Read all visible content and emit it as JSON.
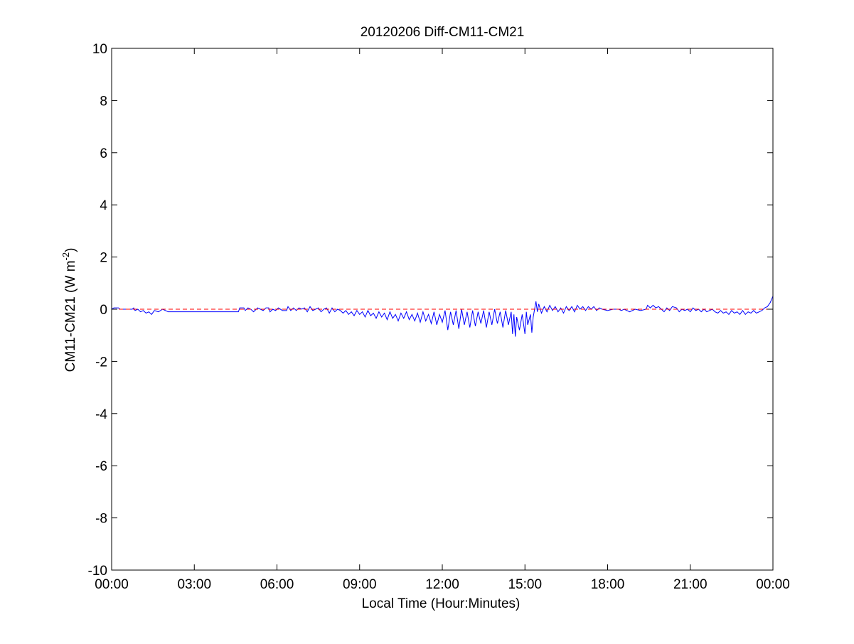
{
  "chart_data": {
    "type": "line",
    "title": "20120206 Diff-CM11-CM21",
    "xlabel": "Local Time (Hour:Minutes)",
    "ylabel": {
      "main": "CM11-CM21 (W m",
      "superscript": "-2",
      "suffix": ")"
    },
    "xlim_hours": [
      0,
      24
    ],
    "ylim": [
      -10,
      10
    ],
    "x_ticks": [
      {
        "hour": 0,
        "label": "00:00"
      },
      {
        "hour": 3,
        "label": "03:00"
      },
      {
        "hour": 6,
        "label": "06:00"
      },
      {
        "hour": 9,
        "label": "09:00"
      },
      {
        "hour": 12,
        "label": "12:00"
      },
      {
        "hour": 15,
        "label": "15:00"
      },
      {
        "hour": 18,
        "label": "18:00"
      },
      {
        "hour": 21,
        "label": "21:00"
      },
      {
        "hour": 24,
        "label": "00:00"
      }
    ],
    "y_ticks": [
      {
        "value": 10,
        "label": "10"
      },
      {
        "value": 8,
        "label": "8"
      },
      {
        "value": 6,
        "label": "6"
      },
      {
        "value": 4,
        "label": "4"
      },
      {
        "value": 2,
        "label": "2"
      },
      {
        "value": 0,
        "label": "0"
      },
      {
        "value": -2,
        "label": "-2"
      },
      {
        "value": -4,
        "label": "-4"
      },
      {
        "value": -6,
        "label": "-6"
      },
      {
        "value": -8,
        "label": "-8"
      },
      {
        "value": -10,
        "label": "-10"
      }
    ],
    "grid": false,
    "series": [
      {
        "style": "solid",
        "color": "#0000ff",
        "points": [
          [
            0.0,
            0.0
          ],
          [
            0.08,
            0.05
          ],
          [
            0.25,
            0.05
          ],
          [
            0.3,
            0.0
          ],
          [
            0.75,
            0.0
          ],
          [
            0.8,
            0.05
          ],
          [
            0.85,
            -0.05
          ],
          [
            0.95,
            0.0
          ],
          [
            1.05,
            -0.1
          ],
          [
            1.15,
            -0.05
          ],
          [
            1.25,
            -0.15
          ],
          [
            1.35,
            -0.1
          ],
          [
            1.45,
            -0.2
          ],
          [
            1.55,
            -0.05
          ],
          [
            1.7,
            -0.1
          ],
          [
            1.85,
            0.0
          ],
          [
            2.05,
            -0.1
          ],
          [
            2.3,
            -0.1
          ],
          [
            3.0,
            -0.1
          ],
          [
            4.0,
            -0.1
          ],
          [
            4.6,
            -0.1
          ],
          [
            4.65,
            0.05
          ],
          [
            4.8,
            0.05
          ],
          [
            4.85,
            -0.05
          ],
          [
            4.95,
            0.05
          ],
          [
            5.05,
            0.0
          ],
          [
            5.15,
            -0.1
          ],
          [
            5.3,
            0.05
          ],
          [
            5.4,
            0.0
          ],
          [
            5.5,
            -0.05
          ],
          [
            5.6,
            0.05
          ],
          [
            5.7,
            0.05
          ],
          [
            5.75,
            -0.1
          ],
          [
            5.85,
            0.0
          ],
          [
            5.95,
            -0.05
          ],
          [
            6.05,
            0.05
          ],
          [
            6.2,
            -0.05
          ],
          [
            6.35,
            -0.05
          ],
          [
            6.4,
            0.1
          ],
          [
            6.5,
            -0.05
          ],
          [
            6.6,
            0.05
          ],
          [
            6.7,
            -0.05
          ],
          [
            6.8,
            0.05
          ],
          [
            6.9,
            0.0
          ],
          [
            7.0,
            0.05
          ],
          [
            7.1,
            -0.1
          ],
          [
            7.2,
            0.1
          ],
          [
            7.3,
            -0.05
          ],
          [
            7.4,
            0.0
          ],
          [
            7.5,
            0.05
          ],
          [
            7.6,
            -0.1
          ],
          [
            7.7,
            0.0
          ],
          [
            7.8,
            0.05
          ],
          [
            7.9,
            -0.15
          ],
          [
            8.0,
            0.05
          ],
          [
            8.1,
            -0.1
          ],
          [
            8.2,
            0.0
          ],
          [
            8.3,
            -0.05
          ],
          [
            8.4,
            -0.15
          ],
          [
            8.5,
            -0.05
          ],
          [
            8.6,
            -0.2
          ],
          [
            8.7,
            -0.1
          ],
          [
            8.8,
            -0.25
          ],
          [
            8.9,
            -0.05
          ],
          [
            9.0,
            -0.2
          ],
          [
            9.1,
            -0.1
          ],
          [
            9.2,
            -0.3
          ],
          [
            9.3,
            -0.05
          ],
          [
            9.4,
            -0.25
          ],
          [
            9.5,
            -0.15
          ],
          [
            9.6,
            -0.35
          ],
          [
            9.7,
            -0.1
          ],
          [
            9.8,
            -0.3
          ],
          [
            9.9,
            -0.15
          ],
          [
            10.0,
            -0.4
          ],
          [
            10.1,
            -0.1
          ],
          [
            10.2,
            -0.35
          ],
          [
            10.3,
            -0.2
          ],
          [
            10.4,
            -0.45
          ],
          [
            10.5,
            -0.15
          ],
          [
            10.6,
            -0.35
          ],
          [
            10.7,
            -0.1
          ],
          [
            10.8,
            -0.4
          ],
          [
            10.9,
            -0.2
          ],
          [
            11.0,
            -0.45
          ],
          [
            11.1,
            -0.15
          ],
          [
            11.2,
            -0.5
          ],
          [
            11.3,
            -0.1
          ],
          [
            11.4,
            -0.45
          ],
          [
            11.5,
            -0.2
          ],
          [
            11.6,
            -0.55
          ],
          [
            11.7,
            -0.1
          ],
          [
            11.8,
            -0.6
          ],
          [
            11.9,
            -0.2
          ],
          [
            12.0,
            -0.5
          ],
          [
            12.1,
            -0.05
          ],
          [
            12.2,
            -0.8
          ],
          [
            12.3,
            -0.1
          ],
          [
            12.4,
            -0.6
          ],
          [
            12.5,
            -0.05
          ],
          [
            12.6,
            -0.75
          ],
          [
            12.7,
            0.0
          ],
          [
            12.8,
            -0.6
          ],
          [
            12.9,
            -0.1
          ],
          [
            13.0,
            -0.7
          ],
          [
            13.1,
            -0.05
          ],
          [
            13.2,
            -0.65
          ],
          [
            13.3,
            -0.1
          ],
          [
            13.4,
            -0.55
          ],
          [
            13.5,
            -0.05
          ],
          [
            13.6,
            -0.7
          ],
          [
            13.7,
            -0.1
          ],
          [
            13.8,
            -0.6
          ],
          [
            13.9,
            0.0
          ],
          [
            14.0,
            -0.55
          ],
          [
            14.1,
            -0.1
          ],
          [
            14.2,
            -0.7
          ],
          [
            14.3,
            -0.05
          ],
          [
            14.4,
            -0.6
          ],
          [
            14.5,
            -0.1
          ],
          [
            14.55,
            -0.95
          ],
          [
            14.6,
            -0.2
          ],
          [
            14.65,
            -1.05
          ],
          [
            14.7,
            -0.3
          ],
          [
            14.8,
            -0.8
          ],
          [
            14.9,
            -0.2
          ],
          [
            15.0,
            -0.95
          ],
          [
            15.05,
            -0.1
          ],
          [
            15.1,
            -0.6
          ],
          [
            15.2,
            -0.2
          ],
          [
            15.25,
            -0.9
          ],
          [
            15.3,
            -0.3
          ],
          [
            15.4,
            0.3
          ],
          [
            15.45,
            -0.1
          ],
          [
            15.5,
            0.2
          ],
          [
            15.6,
            -0.15
          ],
          [
            15.7,
            0.1
          ],
          [
            15.8,
            -0.1
          ],
          [
            15.9,
            0.15
          ],
          [
            16.0,
            -0.05
          ],
          [
            16.1,
            0.1
          ],
          [
            16.2,
            -0.1
          ],
          [
            16.3,
            0.05
          ],
          [
            16.4,
            -0.15
          ],
          [
            16.5,
            0.1
          ],
          [
            16.6,
            -0.05
          ],
          [
            16.7,
            0.1
          ],
          [
            16.8,
            -0.1
          ],
          [
            16.9,
            0.15
          ],
          [
            17.0,
            0.0
          ],
          [
            17.1,
            0.1
          ],
          [
            17.2,
            -0.05
          ],
          [
            17.3,
            0.1
          ],
          [
            17.4,
            0.0
          ],
          [
            17.5,
            0.1
          ],
          [
            17.6,
            -0.05
          ],
          [
            17.7,
            0.05
          ],
          [
            17.8,
            0.0
          ],
          [
            18.0,
            -0.05
          ],
          [
            18.2,
            0.0
          ],
          [
            18.4,
            0.0
          ],
          [
            18.5,
            -0.05
          ],
          [
            18.6,
            0.0
          ],
          [
            18.8,
            -0.1
          ],
          [
            19.0,
            0.0
          ],
          [
            19.2,
            -0.05
          ],
          [
            19.4,
            0.0
          ],
          [
            19.45,
            0.15
          ],
          [
            19.55,
            0.05
          ],
          [
            19.65,
            0.15
          ],
          [
            19.75,
            0.05
          ],
          [
            19.85,
            0.1
          ],
          [
            19.95,
            0.0
          ],
          [
            20.05,
            -0.1
          ],
          [
            20.15,
            0.05
          ],
          [
            20.25,
            -0.05
          ],
          [
            20.35,
            0.1
          ],
          [
            20.5,
            0.05
          ],
          [
            20.6,
            -0.1
          ],
          [
            20.7,
            0.0
          ],
          [
            20.8,
            -0.05
          ],
          [
            20.9,
            0.0
          ],
          [
            21.0,
            -0.1
          ],
          [
            21.1,
            0.05
          ],
          [
            21.2,
            -0.05
          ],
          [
            21.3,
            0.0
          ],
          [
            21.4,
            -0.1
          ],
          [
            21.5,
            0.0
          ],
          [
            21.6,
            -0.1
          ],
          [
            21.7,
            -0.05
          ],
          [
            21.8,
            0.0
          ],
          [
            21.9,
            -0.1
          ],
          [
            22.0,
            -0.15
          ],
          [
            22.1,
            -0.05
          ],
          [
            22.2,
            -0.15
          ],
          [
            22.3,
            -0.1
          ],
          [
            22.4,
            -0.2
          ],
          [
            22.5,
            -0.05
          ],
          [
            22.6,
            -0.15
          ],
          [
            22.7,
            -0.1
          ],
          [
            22.8,
            -0.2
          ],
          [
            22.9,
            -0.05
          ],
          [
            23.0,
            -0.2
          ],
          [
            23.1,
            -0.1
          ],
          [
            23.2,
            -0.15
          ],
          [
            23.3,
            -0.05
          ],
          [
            23.4,
            -0.15
          ],
          [
            23.5,
            -0.1
          ],
          [
            23.6,
            -0.05
          ],
          [
            23.7,
            0.05
          ],
          [
            23.8,
            0.1
          ],
          [
            23.9,
            0.25
          ],
          [
            24.0,
            0.5
          ]
        ]
      },
      {
        "style": "dashed",
        "color": "#ff0000",
        "points": [
          [
            0,
            0
          ],
          [
            24,
            0
          ]
        ]
      }
    ]
  }
}
